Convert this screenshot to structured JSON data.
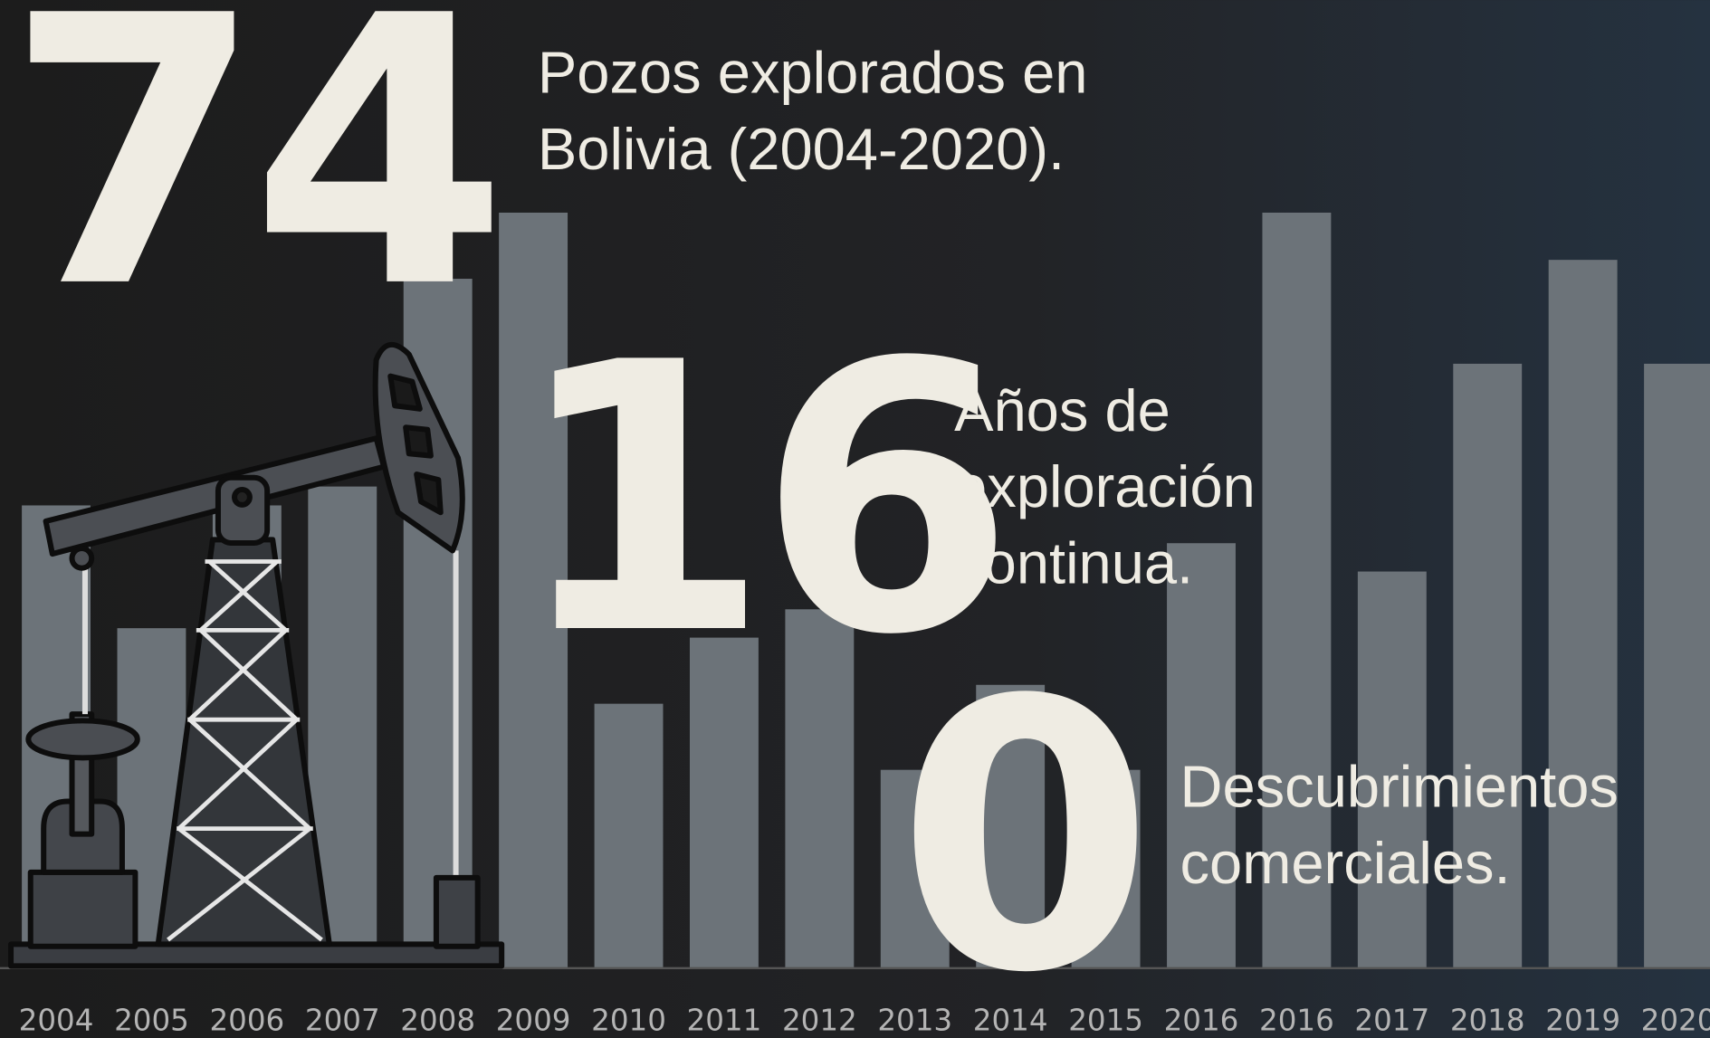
{
  "chart_data": {
    "type": "bar",
    "categories": [
      "2004",
      "2005",
      "2006",
      "2007",
      "2008",
      "2009",
      "2010",
      "2011",
      "2012",
      "2013",
      "2014",
      "2015",
      "2016",
      "2016",
      "2017",
      "2018",
      "2019",
      "2020"
    ],
    "values": [
      4.9,
      3.6,
      4.9,
      5.1,
      7.3,
      8,
      2.8,
      3.5,
      3.8,
      2.1,
      3,
      2.1,
      4.5,
      8,
      4.2,
      6.4,
      7.5,
      6.4
    ],
    "color": "#6c7379",
    "ylim": [
      0,
      8
    ]
  },
  "stats": [
    {
      "number": "74",
      "lines": [
        "Pozos explorados en",
        "Bolivia (2004-2020)."
      ]
    },
    {
      "number": "16",
      "lines": [
        "Años de",
        "exploración",
        "continua."
      ]
    },
    {
      "number": "0",
      "lines": [
        "Descubrimientos",
        "comerciales."
      ]
    }
  ]
}
